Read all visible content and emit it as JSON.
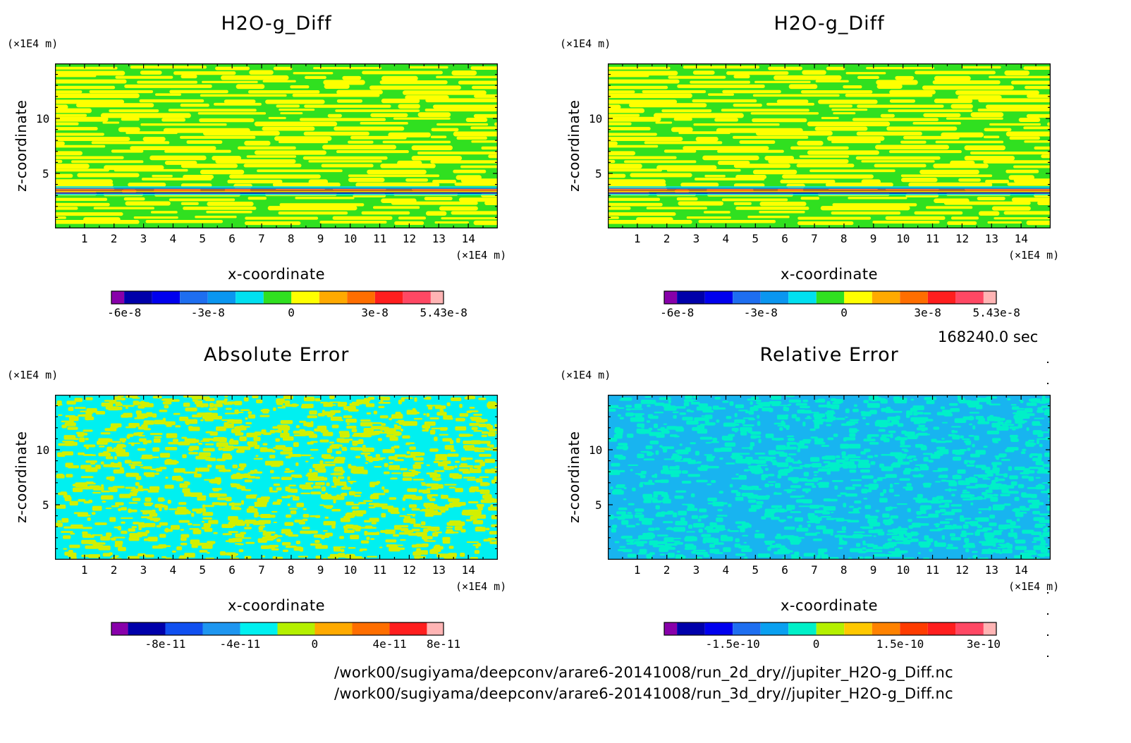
{
  "chart_data": [
    {
      "type": "heatmap",
      "title": "H2O-g_Diff",
      "xlabel": "x-coordinate",
      "ylabel": "z-coordinate",
      "x_unit": "(×1E4 m)",
      "y_unit": "(×1E4 m)",
      "xlim": [
        0,
        15
      ],
      "ylim": [
        0,
        15
      ],
      "x_ticks": [
        "1",
        "2",
        "3",
        "4",
        "5",
        "6",
        "7",
        "8",
        "9",
        "10",
        "11",
        "12",
        "13",
        "14"
      ],
      "y_ticks": [
        "5",
        "10"
      ],
      "pattern": "stripes",
      "levels": [
        -6e-08,
        -5e-08,
        -4e-08,
        -3e-08,
        -2e-08,
        -1e-08,
        0,
        1e-08,
        2e-08,
        3e-08,
        4e-08,
        5e-08,
        5.43e-08
      ],
      "colorbar_colors": [
        "#8800aa",
        "#0000aa",
        "#0000ee",
        "#1e6ef0",
        "#0a96f0",
        "#00e0f0",
        "#30e020",
        "#ffff00",
        "#ffaa00",
        "#ff6e00",
        "#ff1e1e",
        "#ff4864",
        "#ffb4b4"
      ],
      "field_colors": [
        "#30e020",
        "#ffff00"
      ],
      "colorbar_labels": [
        "-6e-8",
        "-3e-8",
        "0",
        "3e-8",
        "5.43e-8"
      ],
      "colorbar_label_at": [
        -6e-08,
        -3e-08,
        0,
        3e-08,
        5.43e-08
      ]
    },
    {
      "type": "heatmap",
      "title": "H2O-g_Diff",
      "xlabel": "x-coordinate",
      "ylabel": "z-coordinate",
      "x_unit": "(×1E4 m)",
      "y_unit": "(×1E4 m)",
      "xlim": [
        0,
        15
      ],
      "ylim": [
        0,
        15
      ],
      "x_ticks": [
        "1",
        "2",
        "3",
        "4",
        "5",
        "6",
        "7",
        "8",
        "9",
        "10",
        "11",
        "12",
        "13",
        "14"
      ],
      "y_ticks": [
        "5",
        "10"
      ],
      "pattern": "stripes",
      "levels": [
        -6e-08,
        -5e-08,
        -4e-08,
        -3e-08,
        -2e-08,
        -1e-08,
        0,
        1e-08,
        2e-08,
        3e-08,
        4e-08,
        5e-08,
        5.43e-08
      ],
      "colorbar_colors": [
        "#8800aa",
        "#0000aa",
        "#0000ee",
        "#1e6ef0",
        "#0a96f0",
        "#00e0f0",
        "#30e020",
        "#ffff00",
        "#ffaa00",
        "#ff6e00",
        "#ff1e1e",
        "#ff4864",
        "#ffb4b4"
      ],
      "field_colors": [
        "#30e020",
        "#ffff00"
      ],
      "colorbar_labels": [
        "-6e-8",
        "-3e-8",
        "0",
        "3e-8",
        "5.43e-8"
      ],
      "colorbar_label_at": [
        -6e-08,
        -3e-08,
        0,
        3e-08,
        5.43e-08
      ]
    },
    {
      "type": "heatmap",
      "title": "Absolute Error",
      "xlabel": "x-coordinate",
      "ylabel": "z-coordinate",
      "x_unit": "(×1E4 m)",
      "y_unit": "(×1E4 m)",
      "xlim": [
        0,
        15
      ],
      "ylim": [
        0,
        15
      ],
      "x_ticks": [
        "1",
        "2",
        "3",
        "4",
        "5",
        "6",
        "7",
        "8",
        "9",
        "10",
        "11",
        "12",
        "13",
        "14"
      ],
      "y_ticks": [
        "5",
        "10"
      ],
      "pattern": "noise",
      "levels": [
        -1e-10,
        -8e-11,
        -6e-11,
        -4e-11,
        -2e-11,
        0,
        2e-11,
        4e-11,
        6e-11,
        8e-11,
        1e-10
      ],
      "colorbar_colors": [
        "#8800aa",
        "#0000aa",
        "#1050f0",
        "#1e96f0",
        "#00f0f0",
        "#b4f000",
        "#ffaa00",
        "#ff6e00",
        "#ff1e1e",
        "#ffb4b4"
      ],
      "field_colors": [
        "#00f0f0",
        "#d2f000"
      ],
      "colorbar_labels": [
        "-8e-11",
        "-4e-11",
        "0",
        "4e-11",
        "8e-11"
      ],
      "colorbar_label_at": [
        -8e-11,
        -4e-11,
        0,
        4e-11,
        8e-11
      ]
    },
    {
      "type": "heatmap",
      "title": "Relative Error",
      "xlabel": "x-coordinate",
      "ylabel": "z-coordinate",
      "x_unit": "(×1E4 m)",
      "y_unit": "(×1E4 m)",
      "xlim": [
        0,
        15
      ],
      "ylim": [
        0,
        15
      ],
      "x_ticks": [
        "1",
        "2",
        "3",
        "4",
        "5",
        "6",
        "7",
        "8",
        "9",
        "10",
        "11",
        "12",
        "13",
        "14"
      ],
      "y_ticks": [
        "5",
        "10"
      ],
      "pattern": "noise",
      "levels": [
        -2.5e-10,
        -2e-10,
        -1.5e-10,
        -1e-10,
        -5e-11,
        0,
        5e-11,
        1e-10,
        1.5e-10,
        2e-10,
        2.5e-10,
        3e-10,
        3.25e-10
      ],
      "colorbar_colors": [
        "#8800aa",
        "#0000aa",
        "#0000ee",
        "#1e6ef0",
        "#0aa0f0",
        "#00f0c8",
        "#b4f000",
        "#ffc800",
        "#ff8200",
        "#ff3c00",
        "#ff1e1e",
        "#ff4864",
        "#ffb4b4"
      ],
      "field_colors": [
        "#18b4f0",
        "#00f0c8"
      ],
      "colorbar_labels": [
        "-1.5e-10",
        "0",
        "1.5e-10",
        "3e-10"
      ],
      "colorbar_label_at": [
        -1.5e-10,
        0,
        1.5e-10,
        3e-10
      ]
    }
  ],
  "time_label": "168240.0 sec",
  "file_paths": [
    "/work00/sugiyama/deepconv/arare6-20141008/run_2d_dry//jupiter_H2O-g_Diff.nc",
    "/work00/sugiyama/deepconv/arare6-20141008/run_3d_dry//jupiter_H2O-g_Diff.nc"
  ]
}
